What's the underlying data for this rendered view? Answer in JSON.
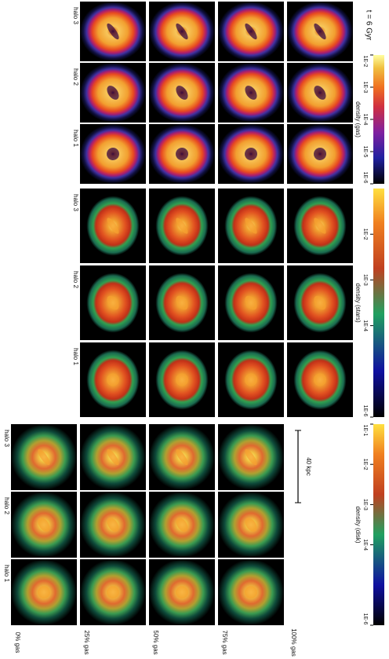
{
  "time_label": "t = 6 Gyr",
  "gas_fractions": [
    "0% gas",
    "25% gas",
    "50% gas",
    "75% gas",
    "100% gas"
  ],
  "halos": [
    "halo 1",
    "halo 2",
    "halo 3"
  ],
  "scale_bar": "40 kpc",
  "colorbar_scale": "log",
  "blocks": [
    {
      "component": "gas",
      "colorbar_label": "density (gas)",
      "clim": [
        1e-06,
        0.01
      ],
      "ticks": [
        {
          "value": 1e-06,
          "label": "1E-6"
        },
        {
          "value": 1e-05,
          "label": "1E-5"
        },
        {
          "value": 0.0001,
          "label": "1E-4"
        },
        {
          "value": 0.001,
          "label": "1E-3"
        },
        {
          "value": 0.01,
          "label": "1E-2"
        }
      ]
    },
    {
      "component": "stars",
      "colorbar_label": "density (stars)",
      "clim": [
        1e-06,
        0.1
      ],
      "ticks": [
        {
          "value": 1e-06,
          "label": "1E-6"
        },
        {
          "value": 0.0001,
          "label": "1E-4"
        },
        {
          "value": 0.001,
          "label": "1E-3"
        },
        {
          "value": 0.01,
          "label": "1E-2"
        }
      ]
    },
    {
      "component": "disk",
      "colorbar_label": "density (disk)",
      "clim": [
        1e-06,
        0.1
      ],
      "ticks": [
        {
          "value": 1e-06,
          "label": "1E-6"
        },
        {
          "value": 0.0001,
          "label": "1E-4"
        },
        {
          "value": 0.001,
          "label": "1E-3"
        },
        {
          "value": 0.01,
          "label": "1E-2"
        },
        {
          "value": 0.1,
          "label": "1E-1"
        }
      ]
    }
  ]
}
